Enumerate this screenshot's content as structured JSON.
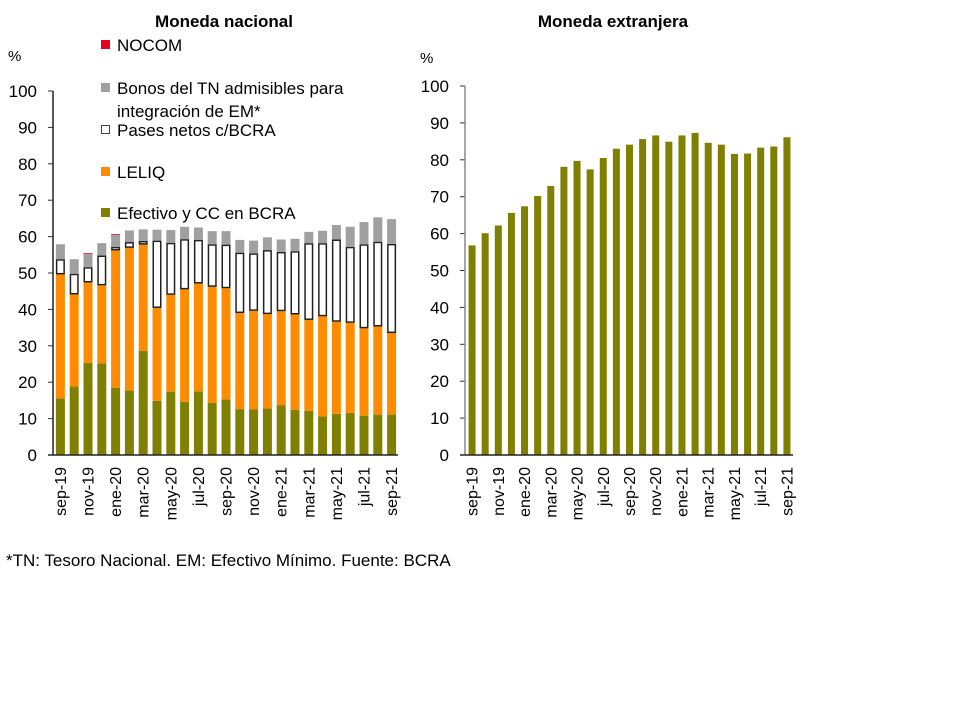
{
  "chart_data": [
    {
      "type": "bar",
      "stacked": true,
      "title": "Moneda nacional",
      "ylabel": "%",
      "xlabel": "",
      "ylim": [
        0,
        100
      ],
      "yticks": [
        0,
        10,
        20,
        30,
        40,
        50,
        60,
        70,
        80,
        90,
        100
      ],
      "categories": [
        "sep-19",
        "oct-19",
        "nov-19",
        "dic-19",
        "ene-20",
        "feb-20",
        "mar-20",
        "abr-20",
        "may-20",
        "jun-20",
        "jul-20",
        "ago-20",
        "sep-20",
        "oct-20",
        "nov-20",
        "dic-20",
        "ene-21",
        "feb-21",
        "mar-21",
        "abr-21",
        "may-21",
        "jun-21",
        "jul-21",
        "ago-21",
        "sep-21"
      ],
      "xtick_labels": [
        "sep-19",
        "nov-19",
        "ene-20",
        "mar-20",
        "may-20",
        "jul-20",
        "sep-20",
        "nov-20",
        "ene-21",
        "mar-21",
        "may-21",
        "jul-21",
        "sep-21"
      ],
      "grid": false,
      "legend_position": "top-inside",
      "series": [
        {
          "name": "Efectivo y CC en BCRA",
          "color": "#7f7f00",
          "style": "fill",
          "values": [
            15.5,
            18.8,
            25.3,
            25.2,
            18.5,
            17.7,
            28.6,
            14.9,
            17.4,
            14.6,
            17.5,
            14.3,
            15.3,
            12.6,
            12.5,
            12.8,
            13.6,
            12.4,
            12.1,
            10.6,
            11.3,
            11.6,
            10.8,
            11.1,
            11.1
          ]
        },
        {
          "name": "LELIQ",
          "color": "#ff8c00",
          "style": "fill",
          "values": [
            34.1,
            25.3,
            22.1,
            21.4,
            37.7,
            39.2,
            29.2,
            25.5,
            26.6,
            30.9,
            29.6,
            31.9,
            30.5,
            26.4,
            27.1,
            25.9,
            25.9,
            26.2,
            25.0,
            27.5,
            25.3,
            24.7,
            24.0,
            24.2,
            22.4
          ]
        },
        {
          "name": "Pases netos c/BCRA",
          "color": "#ffffff",
          "style": "outline",
          "values": [
            4.2,
            5.7,
            4.2,
            8.2,
            1.0,
            1.6,
            1.0,
            18.5,
            14.3,
            13.8,
            12.0,
            11.7,
            12.0,
            16.6,
            15.8,
            17.6,
            16.3,
            17.4,
            21.1,
            20.1,
            22.6,
            20.9,
            23.1,
            23.3,
            24.5
          ]
        },
        {
          "name": "Bonos del TN admisibles para integración de EM*",
          "color": "#a0a0a0",
          "style": "fill",
          "values": [
            4.1,
            4.0,
            3.7,
            3.4,
            3.3,
            3.2,
            3.2,
            3.0,
            3.5,
            3.4,
            3.4,
            3.6,
            3.7,
            3.5,
            3.5,
            3.5,
            3.4,
            3.4,
            3.1,
            3.4,
            4.0,
            5.5,
            6.1,
            6.7,
            6.8
          ]
        },
        {
          "name": "NOCOM",
          "color": "#e8001c",
          "style": "fill",
          "values": [
            0,
            0,
            0.2,
            0,
            0.2,
            0,
            0,
            0,
            0,
            0,
            0,
            0,
            0,
            0,
            0,
            0,
            0,
            0,
            0,
            0,
            0,
            0,
            0,
            0,
            0
          ]
        }
      ],
      "legend_order": [
        "NOCOM",
        "Bonos del TN admisibles para integración de EM*",
        "Pases netos c/BCRA",
        "LELIQ",
        "Efectivo y CC en BCRA"
      ]
    },
    {
      "type": "bar",
      "title": "Moneda extranjera",
      "ylabel": "%",
      "xlabel": "",
      "ylim": [
        0,
        100
      ],
      "yticks": [
        0,
        10,
        20,
        30,
        40,
        50,
        60,
        70,
        80,
        90,
        100
      ],
      "categories": [
        "sep-19",
        "oct-19",
        "nov-19",
        "dic-19",
        "ene-20",
        "feb-20",
        "mar-20",
        "abr-20",
        "may-20",
        "jun-20",
        "jul-20",
        "ago-20",
        "sep-20",
        "oct-20",
        "nov-20",
        "dic-20",
        "ene-21",
        "feb-21",
        "mar-21",
        "abr-21",
        "may-21",
        "jun-21",
        "jul-21",
        "ago-21",
        "sep-21"
      ],
      "xtick_labels": [
        "sep-19",
        "nov-19",
        "ene-20",
        "mar-20",
        "may-20",
        "jul-20",
        "sep-20",
        "nov-20",
        "ene-21",
        "mar-21",
        "may-21",
        "jul-21",
        "sep-21"
      ],
      "grid": false,
      "series": [
        {
          "name": "Efectivo y CC en BCRA",
          "color": "#7f7f00",
          "values": [
            56.8,
            60.1,
            62.2,
            65.6,
            67.4,
            70.2,
            72.9,
            78.1,
            79.7,
            77.4,
            80.5,
            83.0,
            84.1,
            85.6,
            86.6,
            84.9,
            86.6,
            87.3,
            84.6,
            84.1,
            81.6,
            81.7,
            83.3,
            83.6,
            86.1
          ]
        }
      ]
    }
  ],
  "legend_labels": {
    "nocom": "NOCOM",
    "bonos_line1": "Bonos del TN admisibles para",
    "bonos_line2": "integración de EM*",
    "pases": "Pases netos c/BCRA",
    "leliq": "LELIQ",
    "efectivo": "Efectivo y CC en BCRA"
  },
  "footnote": "*TN: Tesoro Nacional. EM: Efectivo Mínimo. Fuente: BCRA"
}
